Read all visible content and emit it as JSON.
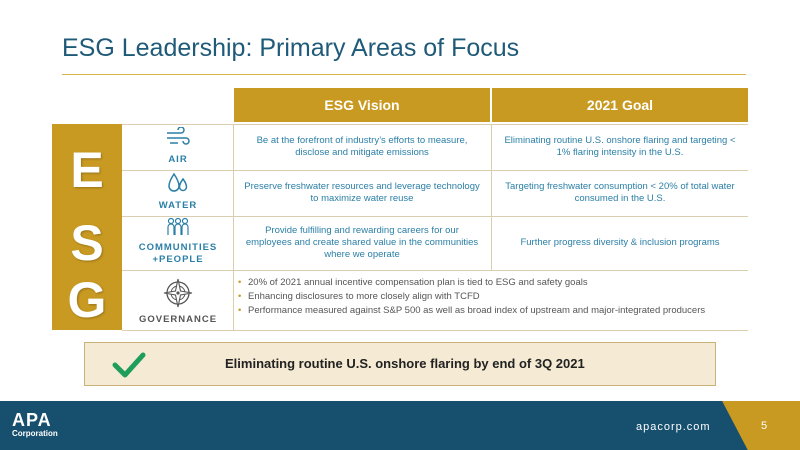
{
  "title": "ESG Leadership: Primary Areas of Focus",
  "header": {
    "vision": "ESG Vision",
    "goal": "2021 Goal"
  },
  "letters": {
    "e": "E",
    "s": "S",
    "g": "G"
  },
  "rows": {
    "air": {
      "label": "AIR",
      "icon": "wind-icon",
      "vision": "Be at the forefront of industry’s efforts to measure, disclose and mitigate emissions",
      "goal": "Eliminating routine U.S. onshore flaring and targeting < 1% flaring intensity in the U.S."
    },
    "water": {
      "label": "WATER",
      "icon": "water-drops-icon",
      "vision": "Preserve freshwater resources and leverage technology to maximize water reuse",
      "goal": "Targeting freshwater consumption < 20% of total water consumed in the U.S."
    },
    "communities": {
      "label": "COMMUNITIES +PEOPLE",
      "icon": "people-group-icon",
      "vision": "Provide fulfilling and rewarding careers for our employees and create shared value in the communities where we operate",
      "goal": "Further progress diversity & inclusion programs"
    },
    "governance": {
      "label": "GOVERNANCE",
      "icon": "compass-icon",
      "bullets": [
        "20% of 2021 annual incentive compensation plan is tied to ESG and safety goals",
        "Enhancing disclosures to more closely align with TCFD",
        "Performance measured against S&P 500 as well as broad index of upstream and major-integrated producers"
      ]
    }
  },
  "callout": {
    "text": "Eliminating routine U.S. onshore flaring by end of 3Q 2021",
    "icon": "checkmark-icon"
  },
  "footer": {
    "logo_main": "APA",
    "logo_sub": "Corporation",
    "site": "apacorp.com",
    "page": "5"
  },
  "colors": {
    "gold": "#c99a22",
    "blue": "#174f6e",
    "text_blue": "#2b7fa6",
    "check_green": "#1e9e5a"
  }
}
